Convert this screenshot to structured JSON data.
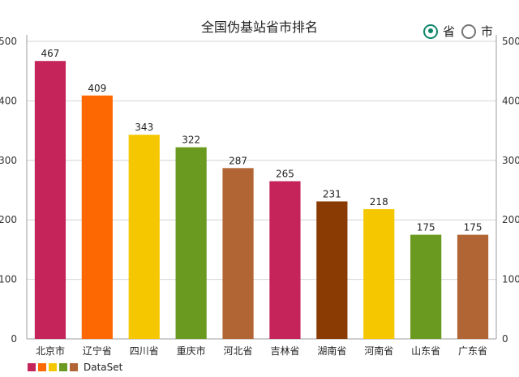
{
  "chart_data": {
    "type": "bar",
    "title": "全国伪基站省市排名",
    "categories": [
      "北京市",
      "辽宁省",
      "四川省",
      "重庆市",
      "河北省",
      "吉林省",
      "湖南省",
      "河南省",
      "山东省",
      "广东省"
    ],
    "series": [
      {
        "name": "DataSet",
        "values": [
          467,
          409,
          343,
          322,
          287,
          265,
          231,
          218,
          175,
          175
        ]
      }
    ],
    "colors": [
      "#c4245a",
      "#fe6802",
      "#f5c701",
      "#6a9a1f",
      "#b26534",
      "#c4245a",
      "#8a3a03",
      "#f5c701",
      "#6a9a1f",
      "#b26534"
    ],
    "legend_colors": [
      "#c4245a",
      "#fe6802",
      "#f5c701",
      "#6a9a1f",
      "#b26534"
    ],
    "ylim": [
      0,
      500
    ],
    "yticks": [
      0,
      100,
      200,
      300,
      400,
      500
    ],
    "grid": true,
    "legend_position": "bottom-left",
    "show_value_labels": true
  },
  "toggle": {
    "options": [
      {
        "label": "省",
        "checked": true
      },
      {
        "label": "市",
        "checked": false
      }
    ],
    "accent": "#10856a"
  }
}
